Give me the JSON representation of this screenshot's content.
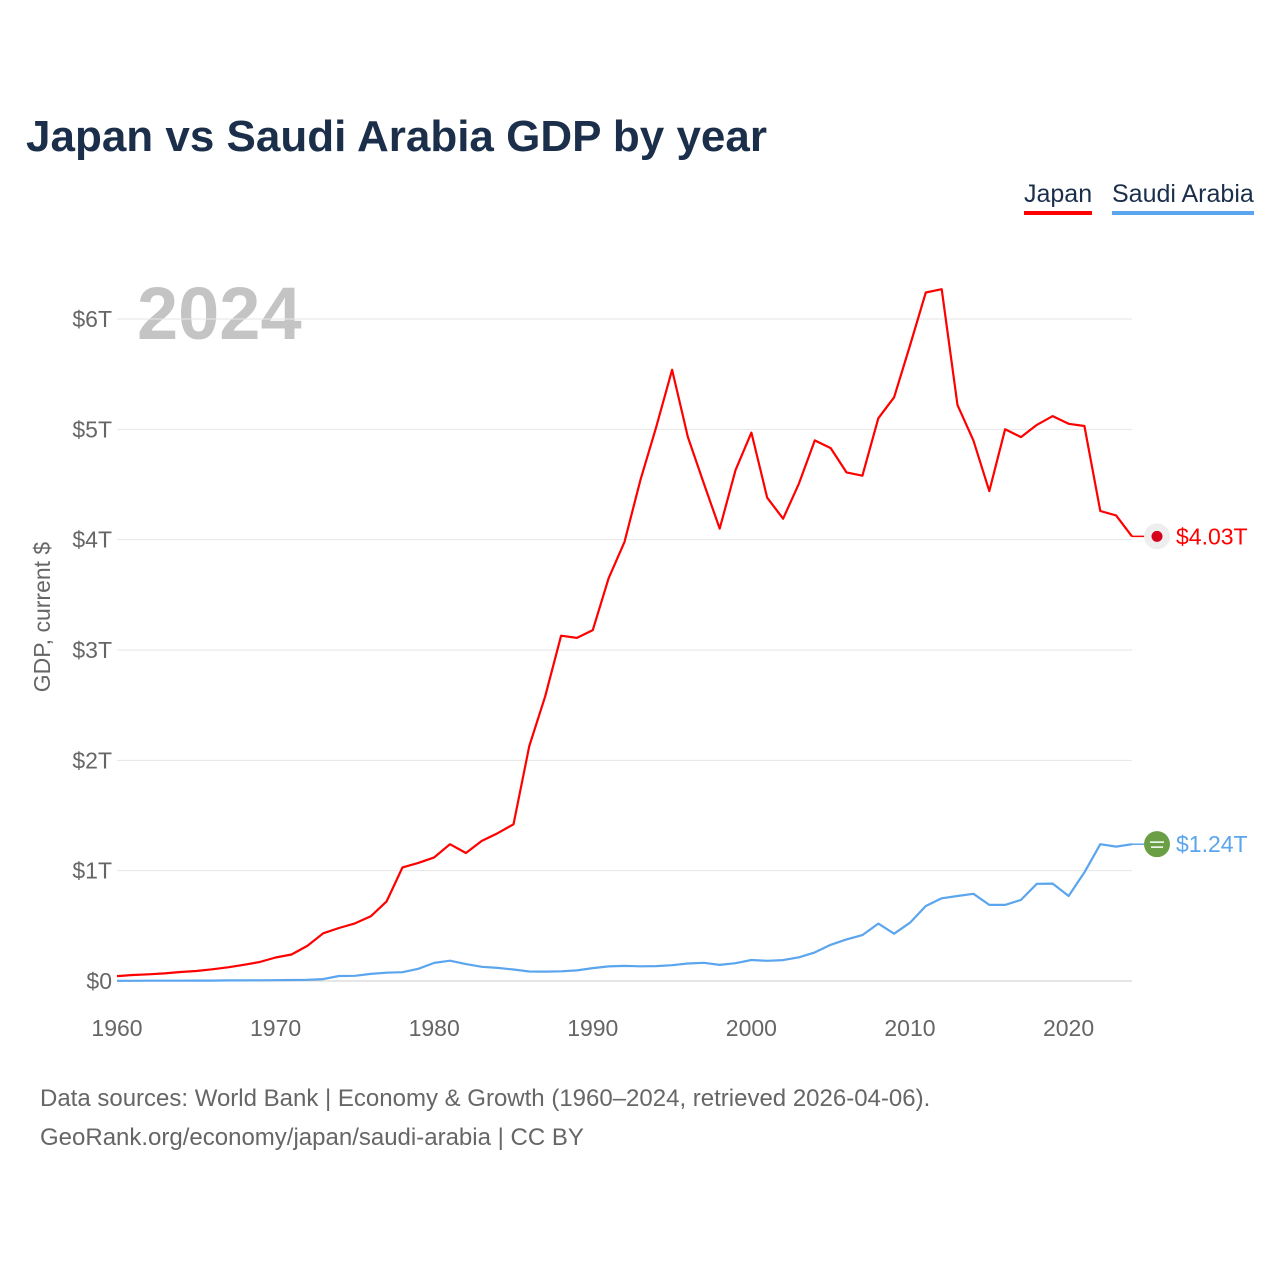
{
  "chart_data": {
    "type": "line",
    "title": "Japan vs Saudi Arabia GDP by year",
    "ylabel": "GDP, current $",
    "xlabel": "",
    "year_overlay": "2024",
    "xlim": [
      1960,
      2024
    ],
    "ylim": [
      0,
      6
    ],
    "y_ticks": [
      0,
      1,
      2,
      3,
      4,
      5,
      6
    ],
    "y_tick_labels": [
      "$0",
      "$1T",
      "$2T",
      "$3T",
      "$4T",
      "$5T",
      "$6T"
    ],
    "x_ticks": [
      1960,
      1970,
      1980,
      1990,
      2000,
      2010,
      2020
    ],
    "x_tick_labels": [
      "1960",
      "1970",
      "1980",
      "1990",
      "2000",
      "2010",
      "2020"
    ],
    "grid": true,
    "legend_placement": "top-right",
    "x": [
      1960,
      1961,
      1962,
      1963,
      1964,
      1965,
      1966,
      1967,
      1968,
      1969,
      1970,
      1971,
      1972,
      1973,
      1974,
      1975,
      1976,
      1977,
      1978,
      1979,
      1980,
      1981,
      1982,
      1983,
      1984,
      1985,
      1986,
      1987,
      1988,
      1989,
      1990,
      1991,
      1992,
      1993,
      1994,
      1995,
      1996,
      1997,
      1998,
      1999,
      2000,
      2001,
      2002,
      2003,
      2004,
      2005,
      2006,
      2007,
      2008,
      2009,
      2010,
      2011,
      2012,
      2013,
      2014,
      2015,
      2016,
      2017,
      2018,
      2019,
      2020,
      2021,
      2022,
      2023,
      2024
    ],
    "series": [
      {
        "name": "Japan",
        "color": "#ff0000",
        "end_label": "$4.03T",
        "values": [
          0.044,
          0.054,
          0.061,
          0.069,
          0.082,
          0.091,
          0.106,
          0.124,
          0.147,
          0.172,
          0.213,
          0.24,
          0.318,
          0.432,
          0.48,
          0.522,
          0.586,
          0.721,
          1.03,
          1.07,
          1.12,
          1.24,
          1.16,
          1.27,
          1.34,
          1.42,
          2.13,
          2.58,
          3.13,
          3.11,
          3.18,
          3.65,
          3.98,
          4.54,
          5.02,
          5.54,
          4.93,
          4.51,
          4.1,
          4.63,
          4.97,
          4.38,
          4.19,
          4.51,
          4.9,
          4.83,
          4.61,
          4.58,
          5.1,
          5.29,
          5.76,
          6.24,
          6.27,
          5.22,
          4.9,
          4.44,
          5.0,
          4.93,
          5.04,
          5.12,
          5.05,
          5.03,
          4.26,
          4.22,
          4.03
        ]
      },
      {
        "name": "Saudi Arabia",
        "color": "#5aa5ee",
        "end_label": "$1.24T",
        "values": [
          0.002,
          0.002,
          0.003,
          0.003,
          0.003,
          0.004,
          0.004,
          0.005,
          0.005,
          0.006,
          0.007,
          0.009,
          0.011,
          0.017,
          0.045,
          0.047,
          0.064,
          0.075,
          0.08,
          0.111,
          0.164,
          0.184,
          0.153,
          0.129,
          0.119,
          0.104,
          0.086,
          0.085,
          0.088,
          0.096,
          0.117,
          0.132,
          0.137,
          0.133,
          0.135,
          0.143,
          0.159,
          0.165,
          0.146,
          0.161,
          0.19,
          0.183,
          0.189,
          0.215,
          0.259,
          0.328,
          0.377,
          0.416,
          0.52,
          0.429,
          0.528,
          0.68,
          0.75,
          0.77,
          0.79,
          0.69,
          0.69,
          0.735,
          0.881,
          0.883,
          0.77,
          0.984,
          1.24,
          1.218,
          1.24
        ]
      }
    ]
  },
  "footer": {
    "line1": "Data sources: World Bank | Economy & Growth (1960–2024, retrieved 2026-04-06).",
    "line2": "GeoRank.org/economy/japan/saudi-arabia | CC BY"
  }
}
